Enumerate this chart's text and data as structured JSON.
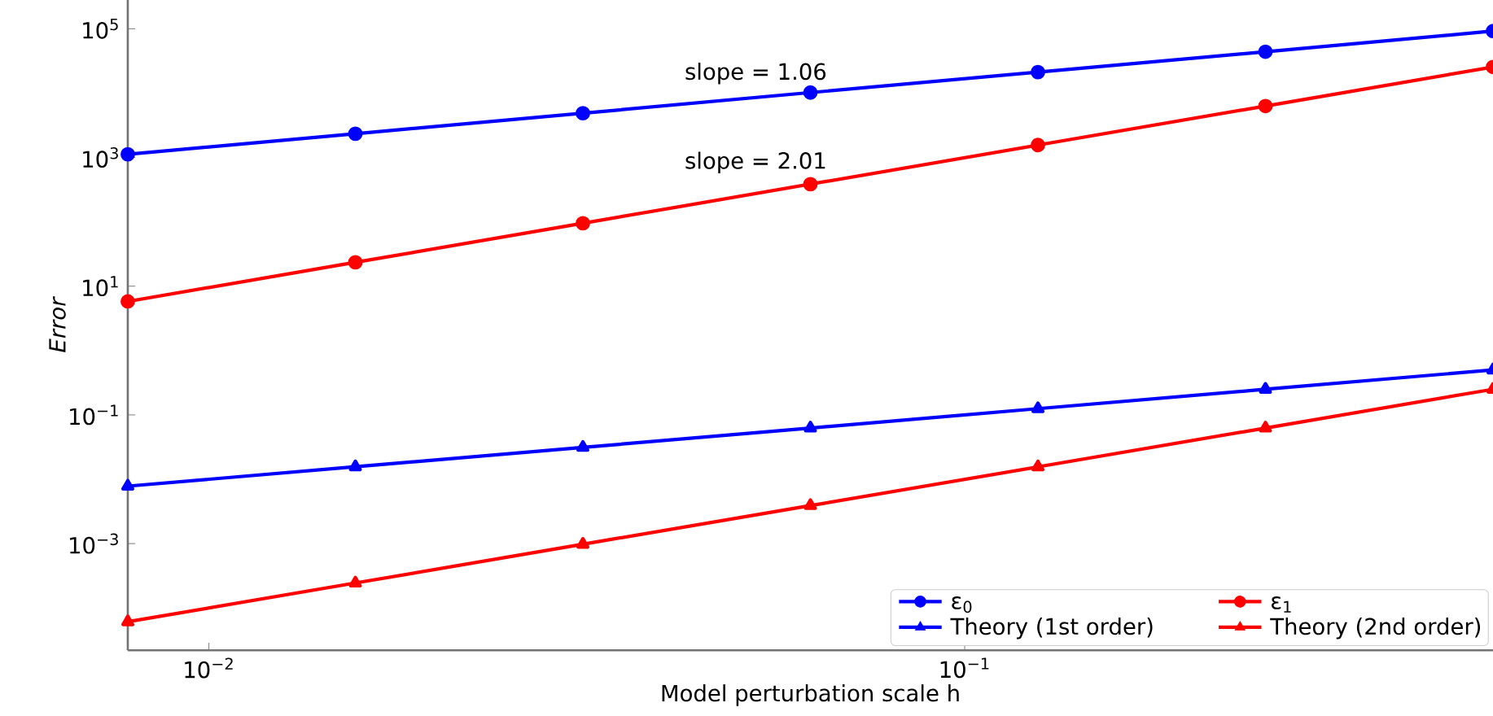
{
  "chart_data": {
    "type": "line",
    "xlabel": "Model perturbation scale h",
    "ylabel": "Error",
    "log": "xy",
    "x": [
      0.0078125,
      0.015625,
      0.03125,
      0.0625,
      0.125,
      0.25,
      0.5
    ],
    "series": [
      {
        "name": "ε$_{0}$",
        "color": "#0000ff",
        "marker": "circle",
        "values": [
          1120,
          2340,
          4870,
          10200,
          21200,
          44000,
          92000
        ]
      },
      {
        "name": "Theory (1st order)",
        "color": "#0000ff",
        "marker": "triangle",
        "values": [
          0.0078125,
          0.015625,
          0.03125,
          0.0625,
          0.125,
          0.25,
          0.5
        ]
      },
      {
        "name": "ε$_{1}$",
        "color": "#ff0000",
        "marker": "circle",
        "values": [
          5.8,
          23.5,
          95,
          385,
          1560,
          6300,
          25500
        ]
      },
      {
        "name": "Theory (2nd order)",
        "color": "#ff0000",
        "marker": "triangle",
        "values": [
          6.1e-05,
          0.000244,
          0.000977,
          0.0039,
          0.0156,
          0.0625,
          0.25
        ]
      }
    ],
    "xlim": [
      0.0078125,
      0.5
    ],
    "ylim": [
      2.2e-05,
      280000
    ],
    "xticks": [
      {
        "value": 0.01,
        "label": "10$^{−2}$"
      },
      {
        "value": 0.1,
        "label": "10$^{−1}$"
      }
    ],
    "yticks": [
      {
        "value": 0.001,
        "label": "10$^{−3}$"
      },
      {
        "value": 0.1,
        "label": "10$^{−1}$"
      },
      {
        "value": 10,
        "label": "10$^{1}$"
      },
      {
        "value": 1000,
        "label": "10$^{3}$"
      },
      {
        "value": 100000,
        "label": "10$^{5}$"
      }
    ],
    "annotations": [
      "slope = 1.06",
      "slope = 2.01"
    ],
    "legend": "bottom right",
    "grid": false,
    "line_style": "solid"
  }
}
